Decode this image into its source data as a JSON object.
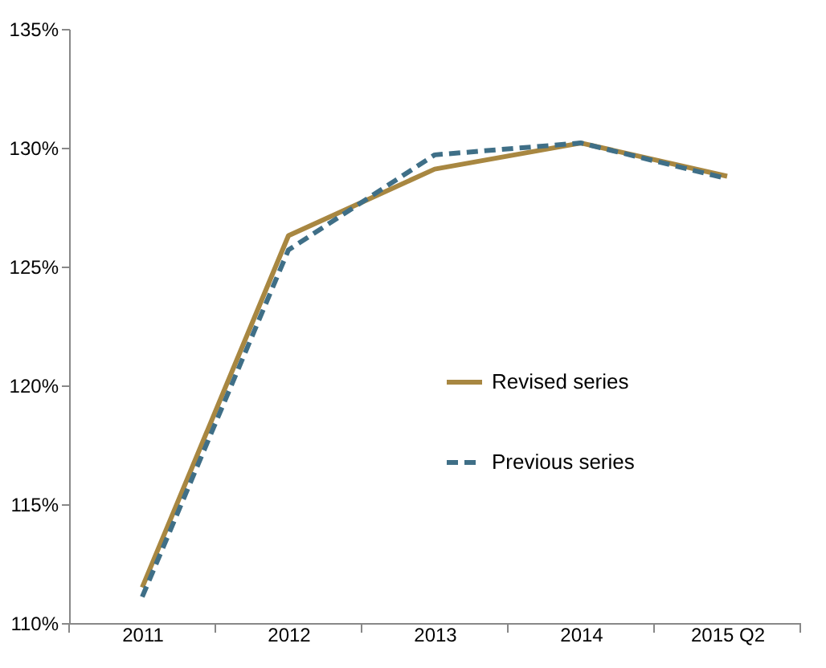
{
  "chart_data": {
    "type": "line",
    "categories": [
      "2011",
      "2012",
      "2013",
      "2014",
      "2015 Q2"
    ],
    "series": [
      {
        "name": "Revised series",
        "color": "#a88741",
        "line_style": "solid",
        "values": [
          111.5,
          126.3,
          129.1,
          130.2,
          128.8
        ]
      },
      {
        "name": "Previous series",
        "color": "#3f6f87",
        "line_style": "dashed",
        "values": [
          111.1,
          125.7,
          129.7,
          130.2,
          128.7
        ]
      }
    ],
    "ylim": [
      110,
      135
    ],
    "yticks": [
      {
        "value": 110,
        "label": "110%"
      },
      {
        "value": 115,
        "label": "115%"
      },
      {
        "value": 120,
        "label": "120%"
      },
      {
        "value": 125,
        "label": "125%"
      },
      {
        "value": 130,
        "label": "130%"
      },
      {
        "value": 135,
        "label": "135%"
      }
    ],
    "grid": false,
    "legend": "right",
    "marker": "none"
  }
}
